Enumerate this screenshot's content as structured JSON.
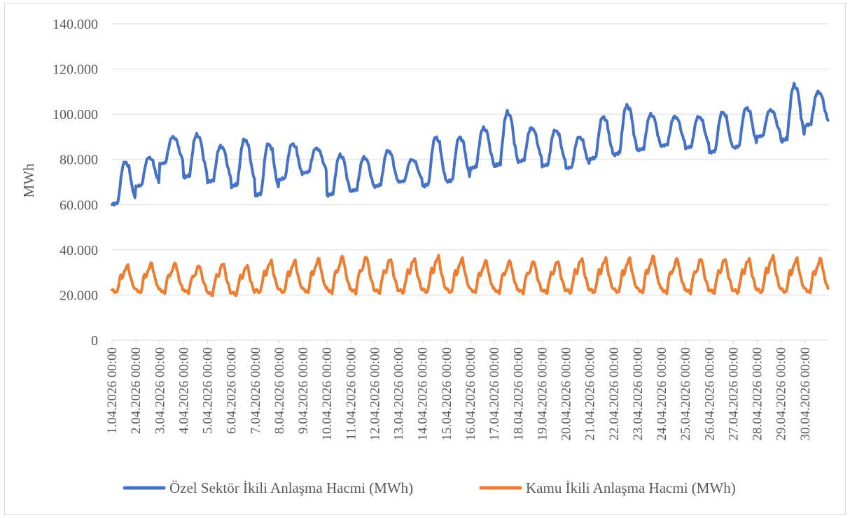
{
  "chart_data": {
    "type": "line",
    "title": "",
    "xlabel": "",
    "ylabel": "MWh",
    "ylim": [
      0,
      140000
    ],
    "y_ticks": [
      0,
      20000,
      40000,
      60000,
      80000,
      100000,
      120000,
      140000
    ],
    "y_tick_labels": [
      "0",
      "20.000",
      "40.000",
      "60.000",
      "80.000",
      "100.000",
      "120.000",
      "140.000"
    ],
    "x_tick_labels": [
      "1.04.2026 00:00",
      "2.04.2026 00:00",
      "3.04.2026 00:00",
      "4.04.2026 00:00",
      "5.04.2026 00:00",
      "6.04.2026 00:00",
      "7.04.2026 00:00",
      "8.04.2026 00:00",
      "9.04.2026 00:00",
      "10.04.2026 00:00",
      "11.04.2026 00:00",
      "12.04.2026 00:00",
      "13.04.2026 00:00",
      "14.04.2026 00:00",
      "15.04.2026 00:00",
      "16.04.2026 00:00",
      "17.04.2026 00:00",
      "18.04.2026 00:00",
      "19.04.2026 00:00",
      "20.04.2026 00:00",
      "21.04.2026 00:00",
      "22.04.2026 00:00",
      "23.04.2026 00:00",
      "24.04.2026 00:00",
      "25.04.2026 00:00",
      "26.04.2026 00:00",
      "27.04.2026 00:00",
      "28.04.2026 00:00",
      "29.04.2026 00:00",
      "30.04.2026 00:00"
    ],
    "x_unit": "hourly, 1.04.2026 00:00 – 30.04.2026 23:00",
    "daily_summary": {
      "private_night_min": [
        60000,
        68000,
        78000,
        72000,
        70000,
        68000,
        64000,
        71000,
        74000,
        64000,
        66000,
        68000,
        70000,
        68000,
        70000,
        76000,
        77000,
        79000,
        77000,
        76000,
        80000,
        82000,
        84000,
        86000,
        85000,
        83000,
        85000,
        90000,
        88000,
        95000
      ],
      "private_day_peak": [
        79000,
        81000,
        90000,
        91000,
        86000,
        89000,
        87000,
        87000,
        85000,
        82000,
        81000,
        84000,
        80000,
        90000,
        90000,
        94000,
        101000,
        94000,
        93000,
        90000,
        99000,
        104000,
        100000,
        99000,
        99000,
        101000,
        103000,
        102000,
        113000,
        110000
      ],
      "public_night_min": [
        21000,
        21000,
        21000,
        21000,
        20000,
        20000,
        21000,
        21000,
        21000,
        21000,
        21000,
        21000,
        21000,
        21000,
        21000,
        21000,
        21000,
        21000,
        21000,
        21000,
        21000,
        21000,
        21000,
        21000,
        21000,
        21000,
        21000,
        21000,
        21000,
        21000
      ],
      "public_day_peak": [
        33000,
        34000,
        34000,
        33000,
        34000,
        33000,
        35000,
        35000,
        36000,
        37000,
        37000,
        36000,
        36000,
        37000,
        36000,
        35000,
        35000,
        35000,
        35000,
        36000,
        36000,
        36000,
        37000,
        36000,
        36000,
        36000,
        36000,
        37000,
        36000,
        36000
      ]
    },
    "series": [
      {
        "name": "Özel Sektör İkili Anlaşma Hacmi (MWh)",
        "color": "#4472C4"
      },
      {
        "name": "Kamu İkili Anlaşma Hacmi (MWh)",
        "color": "#ED7D31"
      }
    ],
    "grid": true,
    "legend_position": "bottom"
  }
}
